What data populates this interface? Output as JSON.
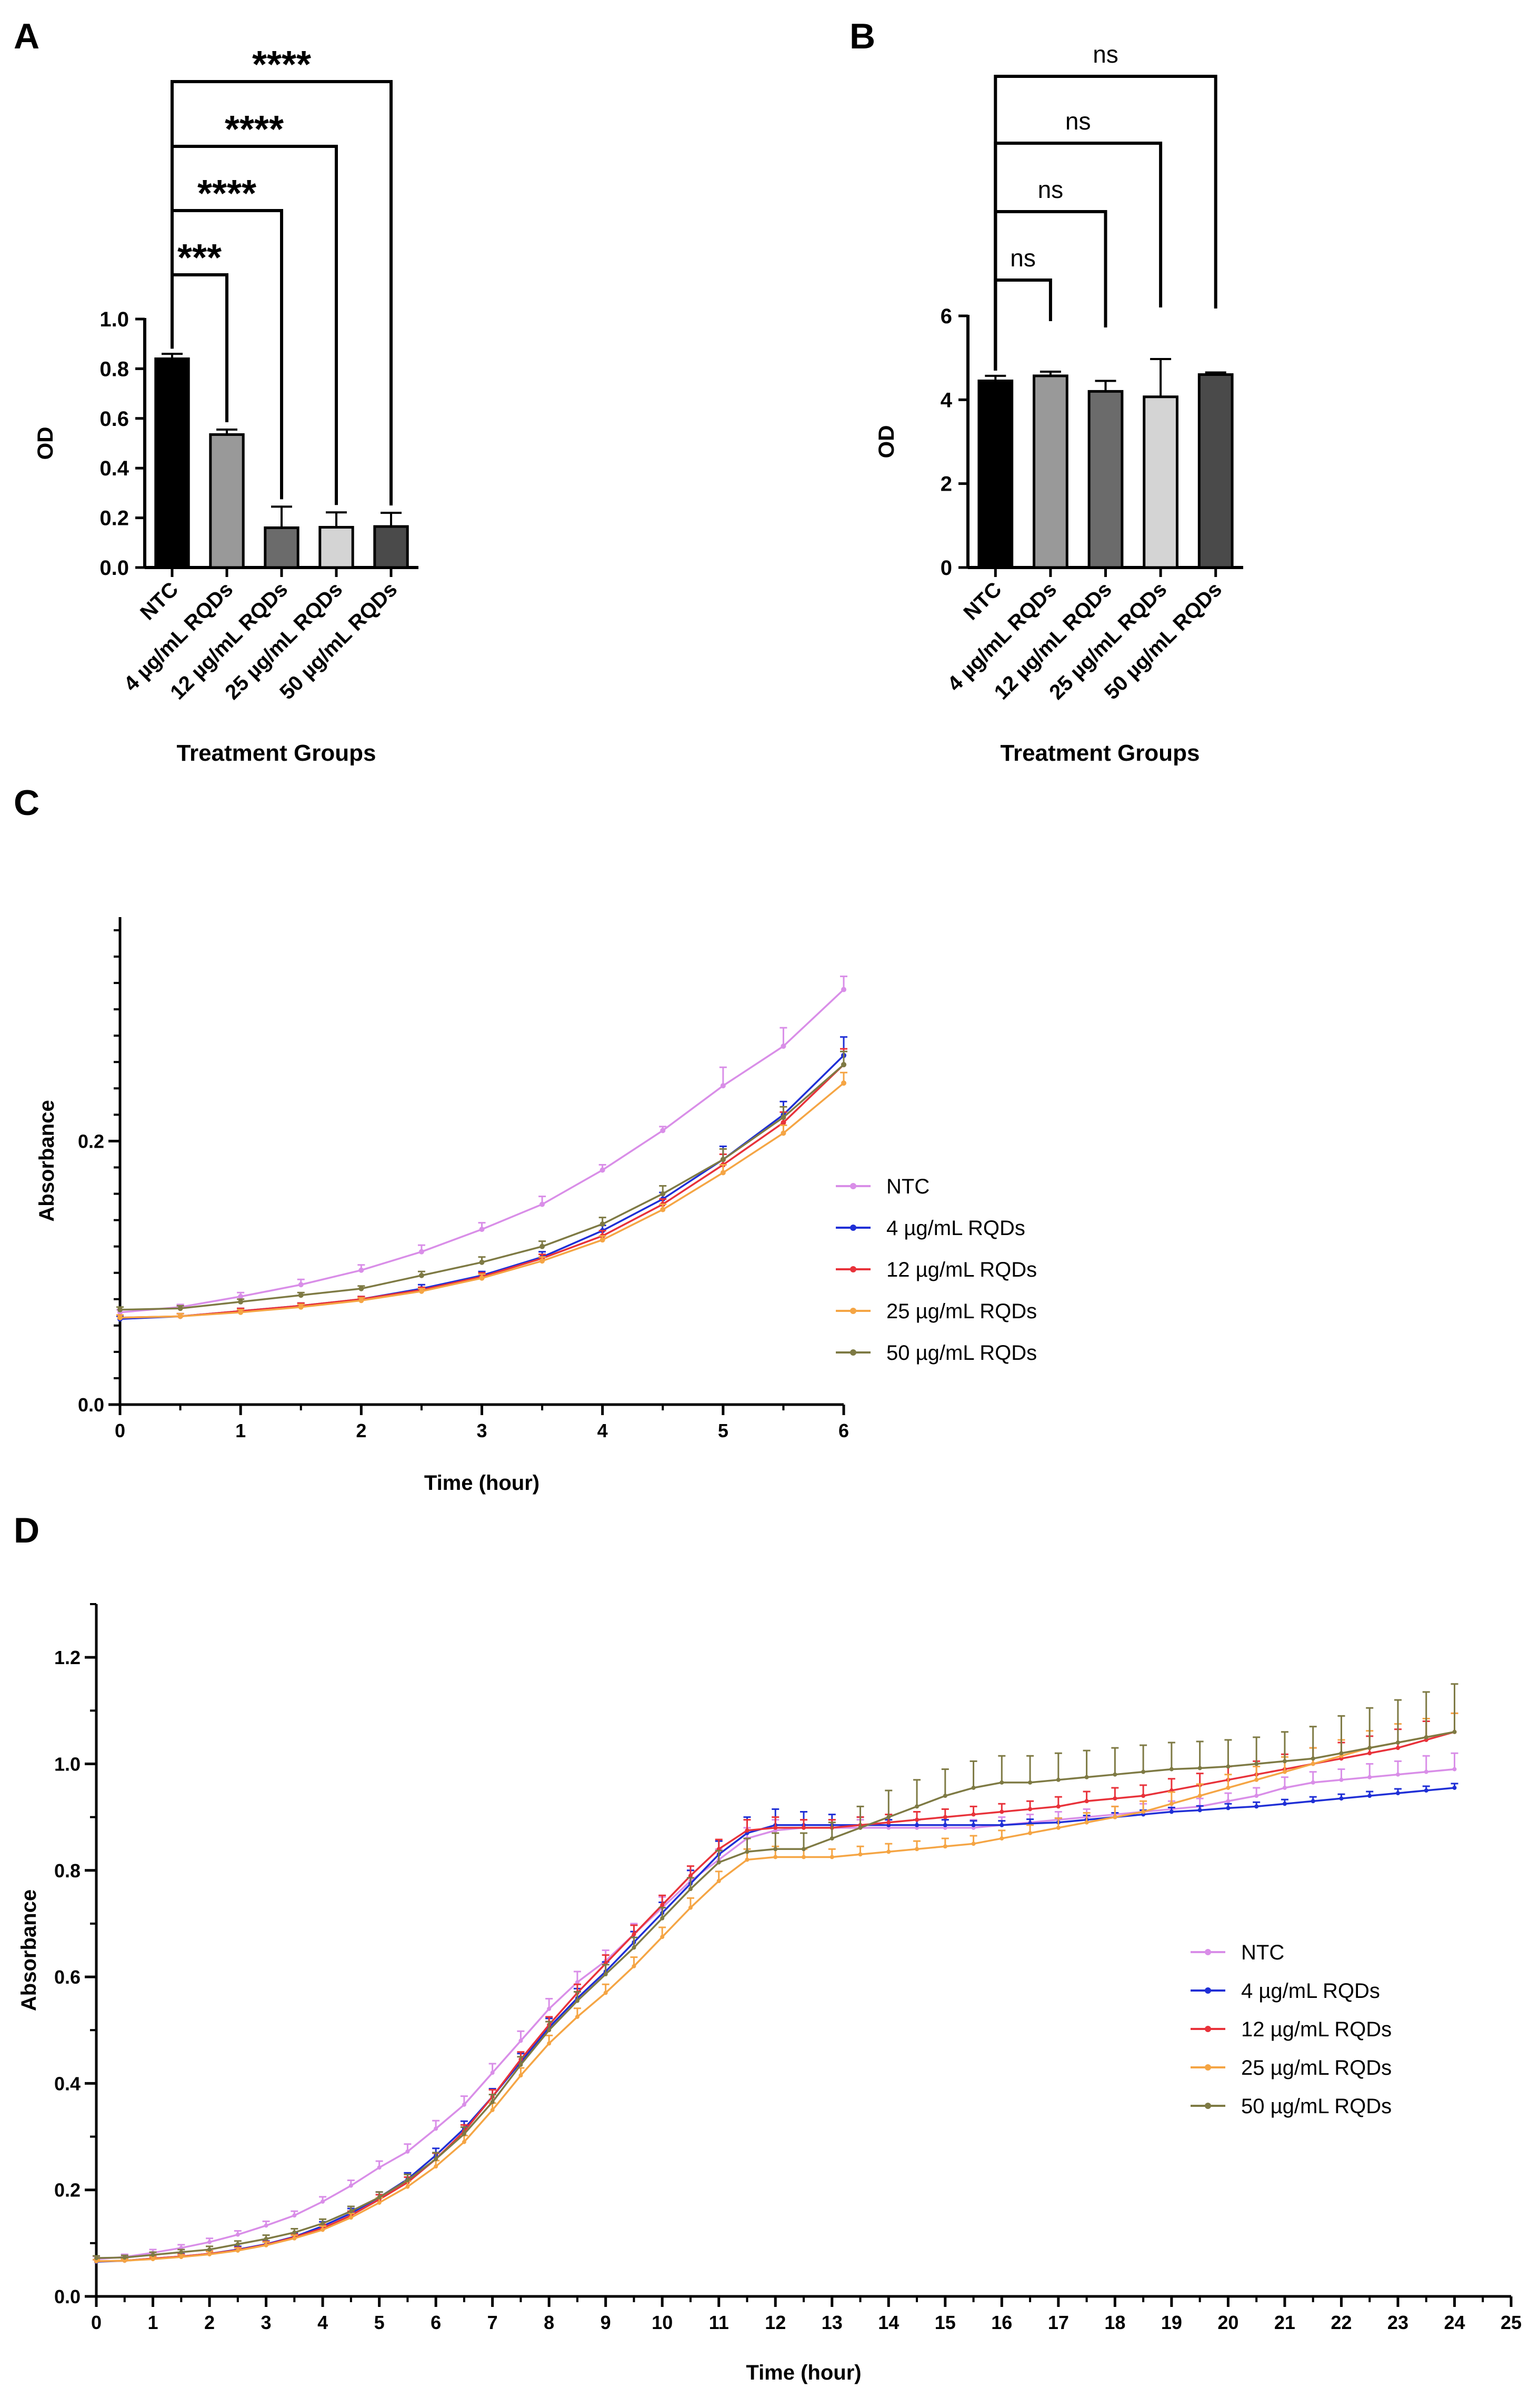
{
  "figure": {
    "colors": {
      "axis": "#000000",
      "sig_line": "#000000"
    },
    "panels": [
      "A",
      "B",
      "C",
      "D"
    ]
  },
  "chart_data": [
    {
      "id": "A",
      "type": "bar",
      "panel_label": "A",
      "xlabel": "Treatment Groups",
      "ylabel": "OD",
      "ylim": [
        0,
        1.0
      ],
      "yticks": [
        "0.0",
        "0.2",
        "0.4",
        "0.6",
        "0.8",
        "1.0"
      ],
      "categories": [
        "NTC",
        "4 µg/mL RQDs",
        "12 µg/mL RQDs",
        "25 µg/mL RQDs",
        "50 µg/mL RQDs"
      ],
      "values": [
        0.84,
        0.535,
        0.16,
        0.162,
        0.165
      ],
      "errors": [
        0.02,
        0.02,
        0.085,
        0.06,
        0.055
      ],
      "bar_colors": [
        "#000000",
        "#999999",
        "#6b6b6b",
        "#d4d4d4",
        "#4a4a4a"
      ],
      "comparisons": [
        {
          "to": 1,
          "label": "***"
        },
        {
          "to": 2,
          "label": "****"
        },
        {
          "to": 3,
          "label": "****"
        },
        {
          "to": 4,
          "label": "****"
        }
      ]
    },
    {
      "id": "B",
      "type": "bar",
      "panel_label": "B",
      "xlabel": "Treatment Groups",
      "ylabel": "OD",
      "ylim": [
        0,
        6
      ],
      "yticks": [
        "0",
        "2",
        "4",
        "6"
      ],
      "categories": [
        "NTC",
        "4 µg/mL RQDs",
        "12 µg/mL RQDs",
        "25 µg/mL RQDs",
        "50 µg/mL RQDs"
      ],
      "values": [
        4.45,
        4.57,
        4.2,
        4.07,
        4.6
      ],
      "errors": [
        0.12,
        0.1,
        0.25,
        0.9,
        0.05
      ],
      "bar_colors": [
        "#000000",
        "#999999",
        "#6b6b6b",
        "#d4d4d4",
        "#4a4a4a"
      ],
      "comparisons": [
        {
          "to": 1,
          "label": "ns"
        },
        {
          "to": 2,
          "label": "ns"
        },
        {
          "to": 3,
          "label": "ns"
        },
        {
          "to": 4,
          "label": "ns"
        }
      ]
    },
    {
      "id": "C",
      "type": "line",
      "panel_label": "C",
      "xlabel": "Time (hour)",
      "ylabel": "Absorbance",
      "xlim": [
        0,
        6
      ],
      "ylim": [
        0,
        0.37
      ],
      "xticks": [
        "0",
        "1",
        "2",
        "3",
        "4",
        "5",
        "6"
      ],
      "yticks": [
        {
          "value": 0.0,
          "label": "0.0"
        },
        {
          "value": 0.2,
          "label": "0.2"
        }
      ],
      "x": [
        0,
        0.5,
        1,
        1.5,
        2,
        2.5,
        3,
        3.5,
        4,
        4.5,
        5,
        5.5,
        6
      ],
      "series": [
        {
          "name": "NTC",
          "color": "#d98ee8",
          "values": [
            0.07,
            0.074,
            0.082,
            0.091,
            0.102,
            0.116,
            0.133,
            0.152,
            0.178,
            0.208,
            0.242,
            0.272,
            0.315
          ],
          "errors": [
            0.002,
            0.002,
            0.003,
            0.004,
            0.004,
            0.005,
            0.005,
            0.006,
            0.004,
            0.003,
            0.014,
            0.014,
            0.01
          ]
        },
        {
          "name": "4 µg/mL RQDs",
          "color": "#1f2fd6",
          "values": [
            0.065,
            0.067,
            0.071,
            0.075,
            0.08,
            0.088,
            0.098,
            0.112,
            0.132,
            0.156,
            0.186,
            0.22,
            0.265
          ],
          "errors": [
            0.002,
            0.002,
            0.002,
            0.002,
            0.002,
            0.003,
            0.003,
            0.004,
            0.004,
            0.005,
            0.01,
            0.01,
            0.014
          ]
        },
        {
          "name": "12 µg/mL RQDs",
          "color": "#e8323a",
          "values": [
            0.066,
            0.067,
            0.071,
            0.075,
            0.08,
            0.087,
            0.097,
            0.111,
            0.128,
            0.152,
            0.182,
            0.214,
            0.258
          ],
          "errors": [
            0.002,
            0.002,
            0.002,
            0.002,
            0.002,
            0.002,
            0.003,
            0.003,
            0.004,
            0.004,
            0.008,
            0.008,
            0.012
          ]
        },
        {
          "name": "25 µg/mL RQDs",
          "color": "#f5a544",
          "values": [
            0.066,
            0.067,
            0.07,
            0.074,
            0.079,
            0.086,
            0.096,
            0.109,
            0.125,
            0.148,
            0.176,
            0.206,
            0.244
          ],
          "errors": [
            0.002,
            0.002,
            0.002,
            0.002,
            0.002,
            0.002,
            0.003,
            0.003,
            0.003,
            0.004,
            0.006,
            0.006,
            0.008
          ]
        },
        {
          "name": "50 µg/mL RQDs",
          "color": "#7e7a44",
          "values": [
            0.072,
            0.073,
            0.078,
            0.083,
            0.088,
            0.098,
            0.108,
            0.12,
            0.137,
            0.16,
            0.186,
            0.218,
            0.258
          ],
          "errors": [
            0.002,
            0.002,
            0.002,
            0.002,
            0.002,
            0.003,
            0.004,
            0.004,
            0.005,
            0.006,
            0.008,
            0.008,
            0.01
          ]
        }
      ]
    },
    {
      "id": "D",
      "type": "line",
      "panel_label": "D",
      "xlabel": "Time (hour)",
      "ylabel": "Absorbance",
      "xlim": [
        0,
        25
      ],
      "ylim": [
        0,
        1.3
      ],
      "xticks": [
        "0",
        "1",
        "2",
        "3",
        "4",
        "5",
        "6",
        "7",
        "8",
        "9",
        "10",
        "11",
        "12",
        "13",
        "14",
        "15",
        "16",
        "17",
        "18",
        "19",
        "20",
        "21",
        "22",
        "23",
        "24",
        "25"
      ],
      "yticks": [
        {
          "value": 0.0,
          "label": "0.0"
        },
        {
          "value": 0.2,
          "label": "0.2"
        },
        {
          "value": 0.4,
          "label": "0.4"
        },
        {
          "value": 0.6,
          "label": "0.6"
        },
        {
          "value": 0.8,
          "label": "0.8"
        },
        {
          "value": 1.0,
          "label": "1.0"
        },
        {
          "value": 1.2,
          "label": "1.2"
        }
      ],
      "x": [
        0,
        0.5,
        1,
        1.5,
        2,
        2.5,
        3,
        3.5,
        4,
        4.5,
        5,
        5.5,
        6,
        6.5,
        7,
        7.5,
        8,
        8.5,
        9,
        9.5,
        10,
        10.5,
        11,
        11.5,
        12,
        12.5,
        13,
        13.5,
        14,
        14.5,
        15,
        15.5,
        16,
        16.5,
        17,
        17.5,
        18,
        18.5,
        19,
        19.5,
        20,
        20.5,
        21,
        21.5,
        22,
        22.5,
        23,
        23.5,
        24
      ],
      "series": [
        {
          "name": "NTC",
          "color": "#d98ee8",
          "values": [
            0.07,
            0.074,
            0.082,
            0.091,
            0.102,
            0.116,
            0.133,
            0.152,
            0.178,
            0.208,
            0.242,
            0.272,
            0.315,
            0.36,
            0.42,
            0.48,
            0.54,
            0.59,
            0.63,
            0.68,
            0.73,
            0.78,
            0.82,
            0.86,
            0.875,
            0.88,
            0.88,
            0.88,
            0.88,
            0.88,
            0.88,
            0.88,
            0.885,
            0.89,
            0.895,
            0.9,
            0.905,
            0.91,
            0.915,
            0.92,
            0.93,
            0.94,
            0.955,
            0.965,
            0.97,
            0.975,
            0.98,
            0.985,
            0.99
          ],
          "errors": [
            0.005,
            0.005,
            0.006,
            0.006,
            0.007,
            0.007,
            0.008,
            0.008,
            0.009,
            0.01,
            0.012,
            0.014,
            0.015,
            0.016,
            0.017,
            0.018,
            0.019,
            0.02,
            0.02,
            0.02,
            0.02,
            0.02,
            0.02,
            0.02,
            0.02,
            0.015,
            0.015,
            0.015,
            0.015,
            0.015,
            0.015,
            0.015,
            0.015,
            0.015,
            0.015,
            0.015,
            0.015,
            0.015,
            0.015,
            0.015,
            0.015,
            0.015,
            0.02,
            0.02,
            0.02,
            0.025,
            0.025,
            0.03,
            0.03
          ]
        },
        {
          "name": "4 µg/mL RQDs",
          "color": "#1f2fd6",
          "values": [
            0.065,
            0.067,
            0.071,
            0.075,
            0.08,
            0.088,
            0.098,
            0.112,
            0.132,
            0.156,
            0.186,
            0.22,
            0.265,
            0.315,
            0.375,
            0.44,
            0.505,
            0.56,
            0.61,
            0.665,
            0.72,
            0.775,
            0.83,
            0.87,
            0.885,
            0.885,
            0.885,
            0.885,
            0.885,
            0.885,
            0.885,
            0.885,
            0.885,
            0.888,
            0.89,
            0.895,
            0.9,
            0.905,
            0.91,
            0.913,
            0.917,
            0.92,
            0.925,
            0.93,
            0.935,
            0.94,
            0.945,
            0.95,
            0.955
          ],
          "errors": [
            0.004,
            0.004,
            0.004,
            0.005,
            0.005,
            0.006,
            0.006,
            0.007,
            0.008,
            0.009,
            0.01,
            0.012,
            0.013,
            0.014,
            0.015,
            0.016,
            0.017,
            0.018,
            0.018,
            0.02,
            0.02,
            0.025,
            0.025,
            0.03,
            0.03,
            0.025,
            0.02,
            0.015,
            0.01,
            0.01,
            0.01,
            0.008,
            0.008,
            0.008,
            0.008,
            0.008,
            0.008,
            0.008,
            0.008,
            0.008,
            0.008,
            0.008,
            0.008,
            0.008,
            0.008,
            0.008,
            0.008,
            0.008,
            0.008
          ]
        },
        {
          "name": "12 µg/mL RQDs",
          "color": "#e8323a",
          "values": [
            0.066,
            0.067,
            0.071,
            0.075,
            0.08,
            0.087,
            0.097,
            0.111,
            0.128,
            0.152,
            0.182,
            0.214,
            0.258,
            0.31,
            0.375,
            0.445,
            0.51,
            0.57,
            0.625,
            0.68,
            0.735,
            0.79,
            0.84,
            0.875,
            0.88,
            0.88,
            0.88,
            0.885,
            0.89,
            0.895,
            0.9,
            0.905,
            0.91,
            0.915,
            0.92,
            0.93,
            0.935,
            0.94,
            0.95,
            0.96,
            0.97,
            0.98,
            0.99,
            1.0,
            1.01,
            1.02,
            1.03,
            1.045,
            1.06
          ],
          "errors": [
            0.003,
            0.003,
            0.004,
            0.004,
            0.005,
            0.005,
            0.006,
            0.006,
            0.007,
            0.008,
            0.009,
            0.01,
            0.011,
            0.012,
            0.013,
            0.014,
            0.015,
            0.016,
            0.016,
            0.017,
            0.018,
            0.018,
            0.018,
            0.02,
            0.02,
            0.015,
            0.015,
            0.015,
            0.015,
            0.015,
            0.015,
            0.015,
            0.015,
            0.015,
            0.018,
            0.018,
            0.02,
            0.02,
            0.022,
            0.022,
            0.025,
            0.025,
            0.028,
            0.03,
            0.03,
            0.032,
            0.035,
            0.035,
            0.035
          ]
        },
        {
          "name": "25 µg/mL RQDs",
          "color": "#f5a544",
          "values": [
            0.066,
            0.067,
            0.07,
            0.074,
            0.079,
            0.086,
            0.096,
            0.109,
            0.125,
            0.148,
            0.176,
            0.206,
            0.244,
            0.29,
            0.35,
            0.415,
            0.475,
            0.525,
            0.57,
            0.62,
            0.675,
            0.73,
            0.78,
            0.82,
            0.825,
            0.825,
            0.825,
            0.83,
            0.835,
            0.84,
            0.845,
            0.85,
            0.86,
            0.87,
            0.88,
            0.89,
            0.9,
            0.91,
            0.925,
            0.94,
            0.955,
            0.97,
            0.985,
            1.0,
            1.015,
            1.03,
            1.04,
            1.05,
            1.06
          ],
          "errors": [
            0.003,
            0.003,
            0.004,
            0.004,
            0.005,
            0.005,
            0.006,
            0.006,
            0.007,
            0.008,
            0.009,
            0.01,
            0.011,
            0.012,
            0.013,
            0.014,
            0.015,
            0.016,
            0.016,
            0.017,
            0.018,
            0.018,
            0.018,
            0.02,
            0.02,
            0.015,
            0.015,
            0.015,
            0.015,
            0.015,
            0.015,
            0.015,
            0.015,
            0.015,
            0.018,
            0.018,
            0.02,
            0.02,
            0.022,
            0.022,
            0.025,
            0.025,
            0.028,
            0.03,
            0.03,
            0.032,
            0.035,
            0.035,
            0.035
          ]
        },
        {
          "name": "50 µg/mL RQDs",
          "color": "#7e7a44",
          "values": [
            0.072,
            0.073,
            0.078,
            0.083,
            0.088,
            0.098,
            0.108,
            0.12,
            0.137,
            0.16,
            0.186,
            0.218,
            0.258,
            0.305,
            0.365,
            0.435,
            0.5,
            0.555,
            0.605,
            0.655,
            0.71,
            0.765,
            0.815,
            0.835,
            0.84,
            0.84,
            0.86,
            0.88,
            0.9,
            0.92,
            0.94,
            0.955,
            0.965,
            0.965,
            0.97,
            0.975,
            0.98,
            0.985,
            0.99,
            0.992,
            0.995,
            1.0,
            1.005,
            1.01,
            1.02,
            1.03,
            1.04,
            1.05,
            1.06
          ],
          "errors": [
            0.004,
            0.004,
            0.005,
            0.005,
            0.006,
            0.006,
            0.007,
            0.007,
            0.008,
            0.009,
            0.01,
            0.011,
            0.012,
            0.013,
            0.014,
            0.015,
            0.016,
            0.017,
            0.018,
            0.019,
            0.02,
            0.021,
            0.022,
            0.025,
            0.03,
            0.03,
            0.03,
            0.04,
            0.05,
            0.05,
            0.05,
            0.05,
            0.05,
            0.05,
            0.05,
            0.05,
            0.05,
            0.05,
            0.05,
            0.05,
            0.05,
            0.05,
            0.055,
            0.06,
            0.07,
            0.075,
            0.08,
            0.085,
            0.09
          ]
        }
      ]
    }
  ]
}
